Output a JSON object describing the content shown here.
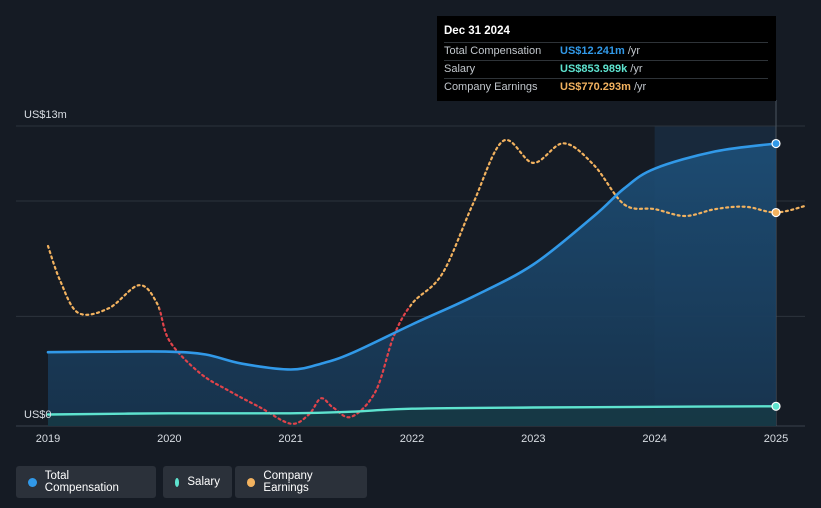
{
  "colors": {
    "total_compensation": "#3199e8",
    "salary": "#5ee3cf",
    "company_earnings": "#f2b25f",
    "company_earnings_negative": "#e0434a",
    "grid": "#2c333c",
    "background": "#151b24"
  },
  "tooltip": {
    "date": "Dec 31 2024",
    "rows": [
      {
        "label": "Total Compensation",
        "value": "US$12.241m",
        "unit": "/yr",
        "color": "#3199e8"
      },
      {
        "label": "Salary",
        "value": "US$853.989k",
        "unit": "/yr",
        "color": "#5ee3cf"
      },
      {
        "label": "Company Earnings",
        "value": "US$770.293m",
        "unit": "/yr",
        "color": "#f2b25f"
      }
    ]
  },
  "legend": [
    {
      "label": "Total Compensation",
      "color": "#3199e8"
    },
    {
      "label": "Salary",
      "color": "#5ee3cf"
    },
    {
      "label": "Company Earnings",
      "color": "#f2b25f"
    }
  ],
  "chart_data": {
    "type": "line",
    "ylabel_top": "US$13m",
    "ylabel_bottom": "US$0",
    "ylim": [
      0,
      13
    ],
    "xlim": [
      2019,
      2025.25
    ],
    "x_ticks": [
      "2019",
      "2020",
      "2021",
      "2022",
      "2023",
      "2024",
      "2025"
    ],
    "highlight_range": [
      2024,
      2025
    ],
    "series": [
      {
        "name": "Total Compensation",
        "unit": "US$m",
        "points": [
          [
            2019.0,
            3.2
          ],
          [
            2019.5,
            3.22
          ],
          [
            2020.0,
            3.22
          ],
          [
            2020.3,
            3.1
          ],
          [
            2020.6,
            2.7
          ],
          [
            2021.0,
            2.45
          ],
          [
            2021.25,
            2.7
          ],
          [
            2021.5,
            3.15
          ],
          [
            2022.0,
            4.4
          ],
          [
            2022.5,
            5.6
          ],
          [
            2023.0,
            7.0
          ],
          [
            2023.5,
            9.1
          ],
          [
            2023.75,
            10.3
          ],
          [
            2024.0,
            11.15
          ],
          [
            2024.5,
            11.9
          ],
          [
            2025.0,
            12.24
          ]
        ]
      },
      {
        "name": "Salary",
        "unit": "US$m",
        "points": [
          [
            2019.0,
            0.5
          ],
          [
            2020.0,
            0.55
          ],
          [
            2021.0,
            0.55
          ],
          [
            2021.5,
            0.62
          ],
          [
            2022.0,
            0.75
          ],
          [
            2023.0,
            0.8
          ],
          [
            2024.0,
            0.83
          ],
          [
            2025.0,
            0.854
          ]
        ]
      },
      {
        "name": "Company Earnings",
        "unit": "US$m (scaled to axis)",
        "points": [
          [
            2019.0,
            7.8
          ],
          [
            2019.1,
            6.3
          ],
          [
            2019.25,
            4.9
          ],
          [
            2019.5,
            5.1
          ],
          [
            2019.75,
            6.1
          ],
          [
            2019.9,
            5.3
          ],
          [
            2020.0,
            3.7
          ],
          [
            2020.25,
            2.3
          ],
          [
            2020.5,
            1.5
          ],
          [
            2020.75,
            0.8
          ],
          [
            2021.0,
            0.1
          ],
          [
            2021.15,
            0.5
          ],
          [
            2021.25,
            1.2
          ],
          [
            2021.35,
            0.8
          ],
          [
            2021.5,
            0.4
          ],
          [
            2021.7,
            1.5
          ],
          [
            2021.85,
            3.9
          ],
          [
            2022.0,
            5.3
          ],
          [
            2022.25,
            6.6
          ],
          [
            2022.5,
            9.6
          ],
          [
            2022.75,
            12.35
          ],
          [
            2023.0,
            11.4
          ],
          [
            2023.25,
            12.25
          ],
          [
            2023.5,
            11.3
          ],
          [
            2023.75,
            9.6
          ],
          [
            2024.0,
            9.4
          ],
          [
            2024.25,
            9.1
          ],
          [
            2024.5,
            9.4
          ],
          [
            2024.75,
            9.5
          ],
          [
            2025.0,
            9.25
          ],
          [
            2025.25,
            9.55
          ]
        ]
      }
    ]
  }
}
